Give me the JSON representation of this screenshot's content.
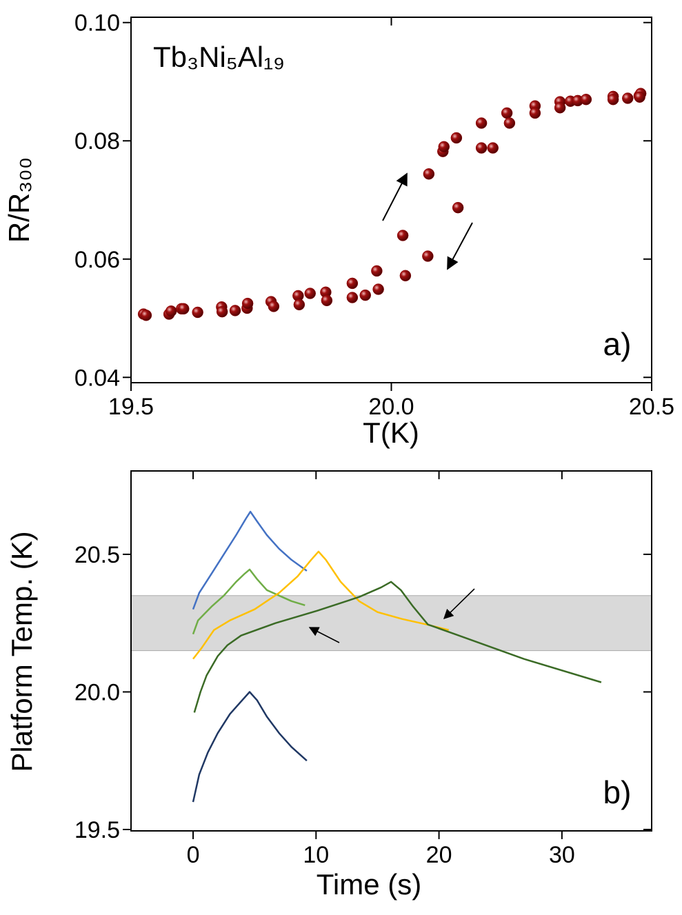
{
  "chart_data": [
    {
      "type": "scatter",
      "annotation": "Tb₃Ni₅Al₁₉",
      "panel_label": "a)",
      "x_label": "T(K)",
      "y_label": "R/R₃₀₀",
      "color": "#8b0000",
      "x": [
        19.524,
        19.529,
        19.573,
        19.577,
        19.597,
        19.601,
        19.628,
        19.674,
        19.675,
        19.7,
        19.723,
        19.724,
        19.769,
        19.774,
        19.821,
        19.823,
        19.844,
        19.874,
        19.876,
        19.925,
        19.925,
        19.95,
        19.972,
        19.975,
        20.022,
        20.027,
        20.07,
        20.072,
        20.099,
        20.101,
        20.125,
        20.128,
        20.173,
        20.173,
        20.195,
        20.222,
        20.227,
        20.276,
        20.276,
        20.324,
        20.324,
        20.344,
        20.358,
        20.374,
        20.426,
        20.426,
        20.454,
        20.476,
        20.479,
        20.477
      ],
      "values": [
        0.0507,
        0.0505,
        0.0507,
        0.0512,
        0.0516,
        0.0516,
        0.051,
        0.0519,
        0.0511,
        0.0513,
        0.0517,
        0.0525,
        0.0528,
        0.052,
        0.0538,
        0.0523,
        0.0542,
        0.0544,
        0.053,
        0.0559,
        0.0535,
        0.0539,
        0.058,
        0.0549,
        0.064,
        0.0572,
        0.0605,
        0.0744,
        0.0782,
        0.079,
        0.0805,
        0.0687,
        0.083,
        0.0788,
        0.0788,
        0.0847,
        0.083,
        0.0859,
        0.0847,
        0.0866,
        0.0856,
        0.0867,
        0.0868,
        0.087,
        0.0875,
        0.087,
        0.0872,
        0.0876,
        0.088,
        0.0874
      ],
      "xlim": [
        19.5,
        20.5
      ],
      "xticks": [
        19.5,
        {
          "value": 20.0,
          "label": "20.0"
        },
        20.5
      ],
      "ylim": [
        0.0391,
        0.1009
      ],
      "yticks": [
        {
          "value": 0.04,
          "label": "0.04"
        },
        {
          "value": 0.06,
          "label": "0.06"
        },
        {
          "value": 0.08,
          "label": "0.08"
        },
        {
          "value": 0.1,
          "label": "0.10"
        }
      ]
    },
    {
      "type": "line",
      "panel_label": "b)",
      "x_label": "Time (s)",
      "y_label": "Platform Temp. (K)",
      "band": [
        20.15,
        20.35
      ],
      "band_color": "#d9d9d9",
      "series": [
        {
          "color": "#4472c4",
          "x": [
            0,
            0.5,
            1.5,
            2.5,
            3.5,
            4.3,
            4.66,
            5.2,
            6,
            7,
            8,
            9.25
          ],
          "values": [
            20.3,
            20.36,
            20.43,
            20.5,
            20.57,
            20.63,
            20.655,
            20.62,
            20.57,
            20.52,
            20.48,
            20.44
          ]
        },
        {
          "color": "#70ad47",
          "x": [
            0,
            0.4,
            1.5,
            2.5,
            3.5,
            4.2,
            4.6,
            5.2,
            6,
            7,
            8,
            9.1
          ],
          "values": [
            20.21,
            20.26,
            20.31,
            20.35,
            20.4,
            20.43,
            20.445,
            20.41,
            20.37,
            20.35,
            20.33,
            20.315
          ]
        },
        {
          "color": "#ffc000",
          "x": [
            0,
            0.7,
            1.7,
            3,
            5,
            7,
            8.5,
            9.6,
            10.2,
            10.8,
            12,
            13.5,
            15,
            17,
            19,
            20.8
          ],
          "values": [
            20.12,
            20.16,
            20.225,
            20.26,
            20.3,
            20.36,
            20.42,
            20.48,
            20.51,
            20.48,
            20.4,
            20.33,
            20.29,
            20.265,
            20.245,
            20.225
          ]
        },
        {
          "color": "#3b6b26",
          "x": [
            0.1,
            0.6,
            1.1,
            2,
            2.8,
            3.9,
            6.7,
            10.1,
            13.5,
            15.3,
            16.1,
            16.9,
            17.9,
            19.1,
            21.3,
            26.9,
            33.2
          ],
          "values": [
            19.925,
            20.0,
            20.06,
            20.13,
            20.17,
            20.205,
            20.25,
            20.295,
            20.345,
            20.38,
            20.4,
            20.37,
            20.31,
            20.245,
            20.21,
            20.12,
            20.035
          ]
        },
        {
          "color": "#203864",
          "x": [
            0,
            0.5,
            1.2,
            2,
            3,
            4,
            4.6,
            5.2,
            6,
            7,
            8,
            9.25
          ],
          "values": [
            19.6,
            19.7,
            19.78,
            19.85,
            19.92,
            19.97,
            20.0,
            19.97,
            19.91,
            19.85,
            19.8,
            19.75
          ]
        }
      ],
      "xlim": [
        -5.05,
        37.3
      ],
      "xticks": [
        0,
        10,
        20,
        30
      ],
      "ylim": [
        19.495,
        20.803
      ],
      "yticks": [
        {
          "value": 19.5,
          "label": "19.5"
        },
        {
          "value": 20.0,
          "label": "20.0"
        },
        20.5
      ]
    }
  ]
}
